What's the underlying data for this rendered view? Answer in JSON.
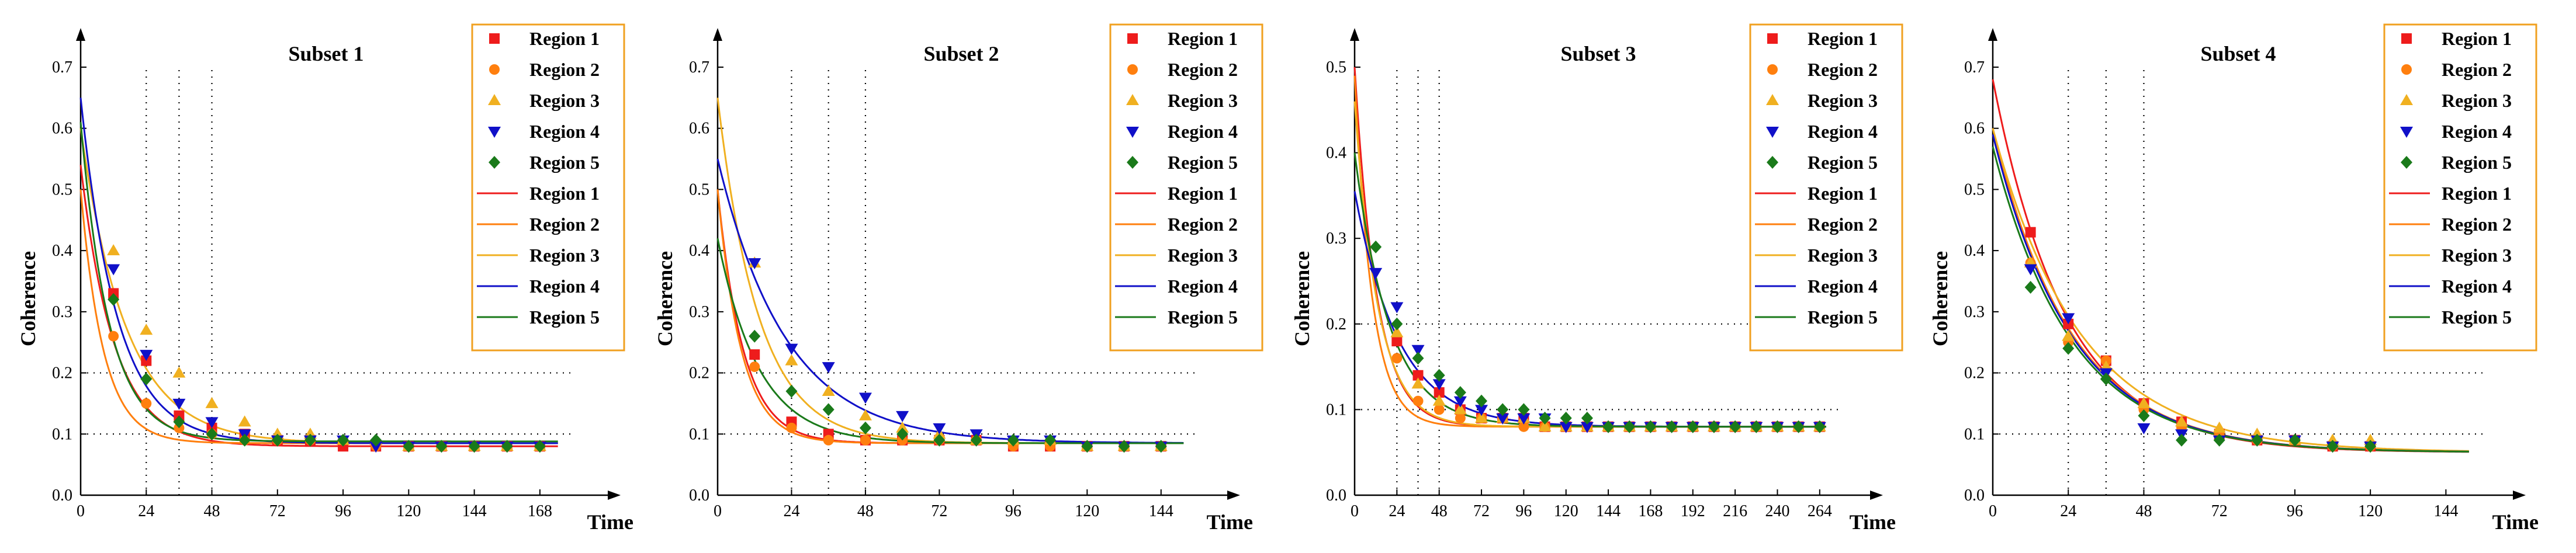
{
  "colors": {
    "region_1": "#ee1c1c",
    "region_2": "#ff7f0e",
    "region_3": "#f0b020",
    "region_4": "#1010c8",
    "region_5": "#1a7a1a",
    "fit_region_4": "#1010c8",
    "legend_border": "#f0a020"
  },
  "chart_data": [
    {
      "type": "scatter",
      "title": "Subset 1",
      "xlabel": "Time",
      "ylabel": "Coherence",
      "xlim": [
        0,
        180
      ],
      "ylim": [
        0,
        0.7
      ],
      "xticks": [
        0,
        24,
        48,
        72,
        96,
        120,
        144,
        168
      ],
      "yticks": [
        0.0,
        0.1,
        0.2,
        0.3,
        0.4,
        0.5,
        0.6,
        0.7
      ],
      "vlines": [
        24,
        36,
        48
      ],
      "hlines": [
        0.1,
        0.2
      ],
      "legend": [
        "Region 1",
        "Region 2",
        "Region 3",
        "Region 4",
        "Region 5",
        "Region 1",
        "Region 2",
        "Region 3",
        "Region 4",
        "Region 5"
      ],
      "legend_position": "top-right",
      "series": [
        {
          "name": "Region 1",
          "marker": "square",
          "x": [
            12,
            24,
            36,
            48,
            60,
            72,
            84,
            96,
            108,
            120,
            132,
            144,
            156,
            168
          ],
          "y": [
            0.33,
            0.22,
            0.13,
            0.11,
            0.1,
            0.09,
            0.09,
            0.08,
            0.08,
            0.08,
            0.08,
            0.08,
            0.08,
            0.08
          ],
          "fit": {
            "c": 0.08,
            "a": 0.46,
            "k": 0.082
          }
        },
        {
          "name": "Region 2",
          "marker": "circle",
          "x": [
            12,
            24,
            36,
            48,
            60,
            72,
            84,
            96,
            108,
            120,
            132,
            144,
            156,
            168
          ],
          "y": [
            0.26,
            0.15,
            0.11,
            0.1,
            0.09,
            0.09,
            0.09,
            0.09,
            0.08,
            0.08,
            0.08,
            0.08,
            0.08,
            0.08
          ],
          "fit": {
            "c": 0.085,
            "a": 0.415,
            "k": 0.12
          }
        },
        {
          "name": "Region 3",
          "marker": "triangle-up",
          "x": [
            12,
            24,
            36,
            48,
            60,
            72,
            84,
            96,
            108,
            120,
            132,
            144,
            156,
            168
          ],
          "y": [
            0.4,
            0.27,
            0.2,
            0.15,
            0.12,
            0.1,
            0.1,
            0.09,
            0.09,
            0.08,
            0.08,
            0.08,
            0.08,
            0.08
          ],
          "fit": {
            "c": 0.085,
            "a": 0.515,
            "k": 0.06
          }
        },
        {
          "name": "Region 4",
          "marker": "triangle-down",
          "x": [
            12,
            24,
            36,
            48,
            60,
            72,
            84,
            96,
            108,
            120,
            132,
            144,
            156,
            168
          ],
          "y": [
            0.37,
            0.23,
            0.15,
            0.12,
            0.1,
            0.09,
            0.09,
            0.09,
            0.08,
            0.08,
            0.08,
            0.08,
            0.08,
            0.08
          ],
          "fit": {
            "c": 0.085,
            "a": 0.565,
            "k": 0.075
          }
        },
        {
          "name": "Region 5",
          "marker": "diamond",
          "x": [
            12,
            24,
            36,
            48,
            60,
            72,
            84,
            96,
            108,
            120,
            132,
            144,
            156,
            168
          ],
          "y": [
            0.32,
            0.19,
            0.12,
            0.1,
            0.09,
            0.09,
            0.09,
            0.09,
            0.09,
            0.08,
            0.08,
            0.08,
            0.08,
            0.08
          ],
          "fit": {
            "c": 0.088,
            "a": 0.522,
            "k": 0.095
          }
        }
      ]
    },
    {
      "type": "scatter",
      "title": "Subset 2",
      "xlabel": "Time",
      "ylabel": "Coherence",
      "xlim": [
        0,
        156
      ],
      "ylim": [
        0,
        0.7
      ],
      "xticks": [
        0,
        24,
        48,
        72,
        96,
        120,
        144
      ],
      "yticks": [
        0.0,
        0.1,
        0.2,
        0.3,
        0.4,
        0.5,
        0.6,
        0.7
      ],
      "vlines": [
        24,
        36,
        48
      ],
      "hlines": [
        0.1,
        0.2
      ],
      "legend": [
        "Region 1",
        "Region 2",
        "Region 3",
        "Region 4",
        "Region 5",
        "Region 1",
        "Region 2",
        "Region 3",
        "Region 4",
        "Region 5"
      ],
      "legend_position": "top-right",
      "series": [
        {
          "name": "Region 1",
          "marker": "square",
          "x": [
            12,
            24,
            36,
            48,
            60,
            72,
            84,
            96,
            108,
            120,
            132,
            144
          ],
          "y": [
            0.23,
            0.12,
            0.1,
            0.09,
            0.09,
            0.09,
            0.09,
            0.08,
            0.08,
            0.08,
            0.08,
            0.08
          ],
          "fit": {
            "c": 0.085,
            "a": 0.415,
            "k": 0.12
          }
        },
        {
          "name": "Region 2",
          "marker": "circle",
          "x": [
            12,
            24,
            36,
            48,
            60,
            72,
            84,
            96,
            108,
            120,
            132,
            144
          ],
          "y": [
            0.21,
            0.11,
            0.09,
            0.09,
            0.09,
            0.09,
            0.09,
            0.08,
            0.08,
            0.08,
            0.08,
            0.08
          ],
          "fit": {
            "c": 0.085,
            "a": 0.415,
            "k": 0.13
          }
        },
        {
          "name": "Region 3",
          "marker": "triangle-up",
          "x": [
            12,
            24,
            36,
            48,
            60,
            72,
            84,
            96,
            108,
            120,
            132,
            144
          ],
          "y": [
            0.38,
            0.22,
            0.17,
            0.13,
            0.11,
            0.1,
            0.09,
            0.09,
            0.09,
            0.08,
            0.08,
            0.08
          ],
          "fit": {
            "c": 0.085,
            "a": 0.565,
            "k": 0.075
          }
        },
        {
          "name": "Region 4",
          "marker": "triangle-down",
          "x": [
            12,
            24,
            36,
            48,
            60,
            72,
            84,
            96,
            108,
            120,
            132,
            144
          ],
          "y": [
            0.38,
            0.24,
            0.21,
            0.16,
            0.13,
            0.11,
            0.1,
            0.09,
            0.09,
            0.08,
            0.08,
            0.08
          ],
          "fit": {
            "c": 0.085,
            "a": 0.465,
            "k": 0.045
          }
        },
        {
          "name": "Region 5",
          "marker": "diamond",
          "x": [
            12,
            24,
            36,
            48,
            60,
            72,
            84,
            96,
            108,
            120,
            132,
            144
          ],
          "y": [
            0.26,
            0.17,
            0.14,
            0.11,
            0.1,
            0.09,
            0.09,
            0.09,
            0.09,
            0.08,
            0.08,
            0.08
          ],
          "fit": {
            "c": 0.085,
            "a": 0.335,
            "k": 0.075
          }
        }
      ]
    },
    {
      "type": "scatter",
      "title": "Subset 3",
      "xlabel": "Time",
      "ylabel": "Coherence",
      "xlim": [
        0,
        276
      ],
      "ylim": [
        0,
        0.5
      ],
      "xticks": [
        0,
        24,
        48,
        72,
        96,
        120,
        144,
        168,
        192,
        216,
        240,
        264
      ],
      "yticks": [
        0.0,
        0.1,
        0.2,
        0.3,
        0.4,
        0.5
      ],
      "vlines": [
        24,
        36,
        48
      ],
      "hlines": [
        0.1,
        0.2
      ],
      "legend": [
        "Region 1",
        "Region 2",
        "Region 3",
        "Region 4",
        "Region 5",
        "Region 1",
        "Region 2",
        "Region 3",
        "Region 4",
        "Region 5"
      ],
      "legend_position": "top-right",
      "series": [
        {
          "name": "Region 1",
          "marker": "square",
          "x": [
            24,
            36,
            48,
            60,
            72,
            84,
            96,
            108,
            120,
            132,
            144,
            156,
            168,
            180,
            192,
            204,
            216,
            228,
            240,
            252,
            264
          ],
          "y": [
            0.18,
            0.14,
            0.12,
            0.1,
            0.09,
            0.09,
            0.09,
            0.08,
            0.08,
            0.08,
            0.08,
            0.08,
            0.08,
            0.08,
            0.08,
            0.08,
            0.08,
            0.08,
            0.08,
            0.08,
            0.08
          ],
          "fit": {
            "c": 0.08,
            "a": 0.42,
            "k": 0.08
          }
        },
        {
          "name": "Region 2",
          "marker": "circle",
          "x": [
            24,
            36,
            48,
            60,
            72,
            84,
            96,
            108,
            120,
            132,
            144,
            156,
            168,
            180,
            192,
            204,
            216,
            228,
            240,
            252,
            264
          ],
          "y": [
            0.16,
            0.11,
            0.1,
            0.09,
            0.09,
            0.09,
            0.08,
            0.08,
            0.08,
            0.08,
            0.08,
            0.08,
            0.08,
            0.08,
            0.08,
            0.08,
            0.08,
            0.08,
            0.08,
            0.08,
            0.08
          ],
          "fit": {
            "c": 0.08,
            "a": 0.41,
            "k": 0.1
          }
        },
        {
          "name": "Region 3",
          "marker": "triangle-up",
          "x": [
            24,
            36,
            48,
            60,
            72,
            84,
            96,
            108,
            120,
            132,
            144,
            156,
            168,
            180,
            192,
            204,
            216,
            228,
            240,
            252,
            264
          ],
          "y": [
            0.19,
            0.13,
            0.11,
            0.1,
            0.09,
            0.09,
            0.09,
            0.08,
            0.08,
            0.08,
            0.08,
            0.08,
            0.08,
            0.08,
            0.08,
            0.08,
            0.08,
            0.08,
            0.08,
            0.08,
            0.08
          ],
          "fit": {
            "c": 0.08,
            "a": 0.38,
            "k": 0.075
          }
        },
        {
          "name": "Region 4",
          "marker": "triangle-down",
          "x": [
            12,
            24,
            36,
            48,
            60,
            72,
            84,
            96,
            108,
            120,
            132,
            144,
            156,
            168,
            180,
            192,
            204,
            216,
            228,
            240,
            252,
            264
          ],
          "y": [
            0.26,
            0.22,
            0.17,
            0.13,
            0.11,
            0.1,
            0.09,
            0.09,
            0.09,
            0.08,
            0.08,
            0.08,
            0.08,
            0.08,
            0.08,
            0.08,
            0.08,
            0.08,
            0.08,
            0.08,
            0.08,
            0.08
          ],
          "fit": {
            "c": 0.08,
            "a": 0.275,
            "k": 0.04
          }
        },
        {
          "name": "Region 5",
          "marker": "diamond",
          "x": [
            12,
            24,
            36,
            48,
            60,
            72,
            84,
            96,
            108,
            120,
            132,
            144,
            156,
            168,
            180,
            192,
            204,
            216,
            228,
            240,
            252,
            264
          ],
          "y": [
            0.29,
            0.2,
            0.16,
            0.14,
            0.12,
            0.11,
            0.1,
            0.1,
            0.09,
            0.09,
            0.09,
            0.08,
            0.08,
            0.08,
            0.08,
            0.08,
            0.08,
            0.08,
            0.08,
            0.08,
            0.08,
            0.08
          ],
          "fit": {
            "c": 0.08,
            "a": 0.32,
            "k": 0.05
          }
        }
      ]
    },
    {
      "type": "scatter",
      "title": "Subset 4",
      "xlabel": "Time",
      "ylabel": "Coherence",
      "xlim": [
        0,
        156
      ],
      "ylim": [
        0,
        0.7
      ],
      "xticks": [
        0,
        24,
        48,
        72,
        96,
        120,
        144
      ],
      "yticks": [
        0.0,
        0.1,
        0.2,
        0.3,
        0.4,
        0.5,
        0.6,
        0.7
      ],
      "vlines": [
        24,
        36,
        48
      ],
      "hlines": [
        0.1,
        0.2
      ],
      "legend": [
        "Region 1",
        "Region 2",
        "Region 3",
        "Region 4",
        "Region 5",
        "Region 1",
        "Region 2",
        "Region 3",
        "Region 4",
        "Region 5"
      ],
      "legend_position": "top-right",
      "series": [
        {
          "name": "Region 1",
          "marker": "square",
          "x": [
            12,
            24,
            36,
            48,
            60,
            72,
            84,
            96,
            108,
            120
          ],
          "y": [
            0.43,
            0.28,
            0.22,
            0.15,
            0.12,
            0.1,
            0.09,
            0.09,
            0.08,
            0.08
          ],
          "fit": {
            "c": 0.07,
            "a": 0.61,
            "k": 0.043
          }
        },
        {
          "name": "Region 2",
          "marker": "circle",
          "x": [
            12,
            24,
            36,
            48,
            60,
            72,
            84,
            96,
            108,
            120
          ],
          "y": [
            0.38,
            0.25,
            0.22,
            0.14,
            0.11,
            0.1,
            0.09,
            0.09,
            0.08,
            0.08
          ],
          "fit": {
            "c": 0.07,
            "a": 0.53,
            "k": 0.04
          }
        },
        {
          "name": "Region 3",
          "marker": "triangle-up",
          "x": [
            12,
            24,
            36,
            48,
            60,
            72,
            84,
            96,
            108,
            120
          ],
          "y": [
            0.38,
            0.26,
            0.21,
            0.15,
            0.12,
            0.11,
            0.1,
            0.09,
            0.09,
            0.09
          ],
          "fit": {
            "c": 0.07,
            "a": 0.53,
            "k": 0.036
          }
        },
        {
          "name": "Region 4",
          "marker": "triangle-down",
          "x": [
            12,
            24,
            36,
            48,
            60,
            72,
            84,
            96,
            108,
            120
          ],
          "y": [
            0.37,
            0.29,
            0.2,
            0.11,
            0.1,
            0.09,
            0.09,
            0.09,
            0.08,
            0.08
          ],
          "fit": {
            "c": 0.07,
            "a": 0.52,
            "k": 0.04
          }
        },
        {
          "name": "Region 5",
          "marker": "diamond",
          "x": [
            12,
            24,
            36,
            48,
            60,
            72,
            84,
            96,
            108,
            120
          ],
          "y": [
            0.34,
            0.24,
            0.19,
            0.13,
            0.09,
            0.09,
            0.09,
            0.09,
            0.08,
            0.08
          ],
          "fit": {
            "c": 0.07,
            "a": 0.5,
            "k": 0.04
          }
        }
      ]
    }
  ]
}
